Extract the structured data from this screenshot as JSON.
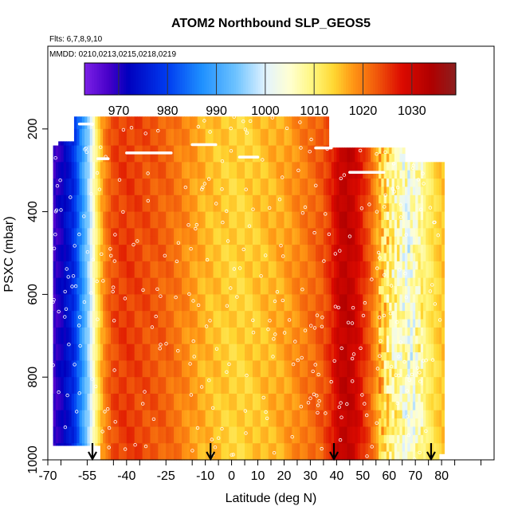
{
  "chart_data": {
    "type": "heatmap",
    "title": "ATOM2 Northbound SLP_GEOS5",
    "flights_note": "Flts: 6,7,8,9,10",
    "dates_note": "MMDD: 0210,0213,0215,0218,0219",
    "xlabel": "Latitude (deg N)",
    "ylabel": "PSXC (mbar)",
    "xlim": [
      -70,
      100
    ],
    "ylim": [
      1000,
      0
    ],
    "x_ticks": [
      -70,
      -55,
      -40,
      -25,
      -10,
      0,
      10,
      20,
      30,
      40,
      50,
      60,
      70,
      80
    ],
    "y_ticks": [
      200,
      400,
      600,
      800,
      1000
    ],
    "colorbar": {
      "min": 963,
      "max": 1039,
      "ticks": [
        970,
        980,
        990,
        1000,
        1010,
        1020,
        1030
      ]
    },
    "arrows_lat": [
      -53,
      -8,
      39,
      76
    ],
    "grid": false,
    "slp_profile": {
      "lat": [
        -68,
        -64,
        -60,
        -57,
        -54,
        -52,
        -50,
        -48,
        -45,
        -40,
        -35,
        -30,
        -25,
        -20,
        -15,
        -10,
        -5,
        0,
        5,
        10,
        15,
        20,
        25,
        30,
        35,
        38,
        41,
        44,
        47,
        50,
        53,
        56,
        60,
        64,
        68,
        72,
        76,
        80
      ],
      "slp": [
        968,
        972,
        978,
        988,
        998,
        1008,
        1015,
        1020,
        1024,
        1025,
        1024,
        1023,
        1022,
        1020,
        1018,
        1016,
        1015,
        1014,
        1014,
        1015,
        1016,
        1017,
        1019,
        1021,
        1023,
        1026,
        1031,
        1032,
        1030,
        1026,
        1022,
        1016,
        1010,
        1006,
        1003,
        1008,
        1012,
        1015
      ]
    }
  }
}
